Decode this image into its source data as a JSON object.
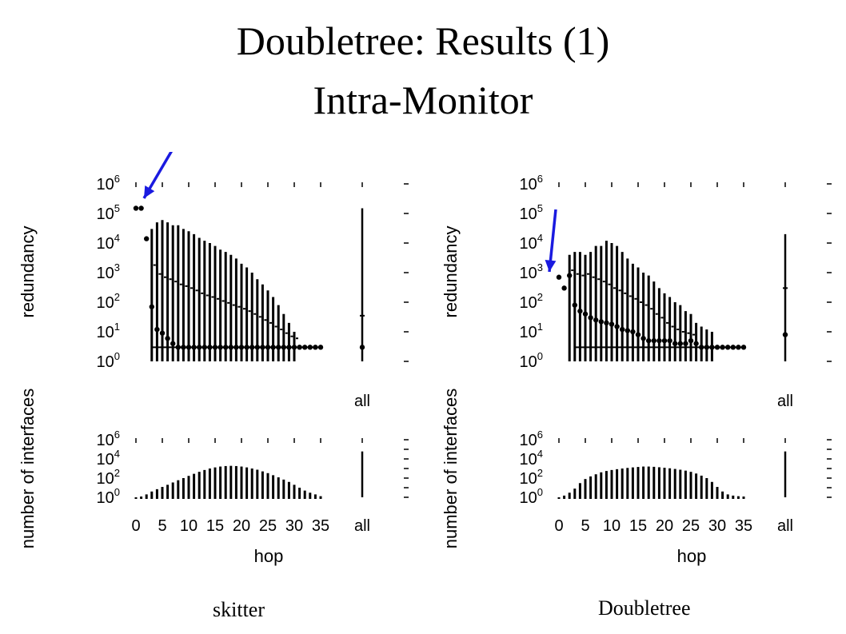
{
  "slide": {
    "title_line1": "Doubletree: Results (1)",
    "title_line2": "Intra-Monitor",
    "caption_left": "skitter",
    "caption_right": "Doubletree",
    "arrow_color": "#1a1ae0"
  },
  "chart_data": [
    {
      "type": "box-and-bar",
      "caption": "skitter",
      "top_panel": {
        "ylabel": "redundancy",
        "yscale": "log",
        "ylim": [
          1,
          1000000
        ],
        "yticks": [
          "10^0",
          "10^1",
          "10^2",
          "10^3",
          "10^4",
          "10^5",
          "10^6"
        ],
        "all_label": "all",
        "median": [
          [
            0,
            150000
          ],
          [
            1,
            150000
          ],
          [
            2,
            14000
          ],
          [
            3,
            70
          ],
          [
            4,
            12
          ],
          [
            5,
            9
          ],
          [
            6,
            6
          ],
          [
            7,
            4
          ],
          [
            8,
            3
          ],
          [
            9,
            3
          ],
          [
            10,
            3
          ],
          [
            11,
            3
          ],
          [
            12,
            3
          ],
          [
            13,
            3
          ],
          [
            14,
            3
          ],
          [
            15,
            3
          ],
          [
            16,
            3
          ],
          [
            17,
            3
          ],
          [
            18,
            3
          ],
          [
            19,
            3
          ],
          [
            20,
            3
          ],
          [
            21,
            3
          ],
          [
            22,
            3
          ],
          [
            23,
            3
          ],
          [
            24,
            3
          ],
          [
            25,
            3
          ],
          [
            26,
            3
          ],
          [
            27,
            3
          ],
          [
            28,
            3
          ],
          [
            29,
            3
          ],
          [
            30,
            3
          ],
          [
            31,
            3
          ],
          [
            32,
            3
          ],
          [
            33,
            3
          ],
          [
            34,
            3
          ],
          [
            35,
            3
          ]
        ],
        "mean": [
          [
            3,
            1800
          ],
          [
            4,
            900
          ],
          [
            5,
            700
          ],
          [
            6,
            600
          ],
          [
            7,
            500
          ],
          [
            8,
            400
          ],
          [
            9,
            350
          ],
          [
            10,
            300
          ],
          [
            11,
            250
          ],
          [
            12,
            200
          ],
          [
            13,
            170
          ],
          [
            14,
            150
          ],
          [
            15,
            130
          ],
          [
            16,
            110
          ],
          [
            17,
            95
          ],
          [
            18,
            80
          ],
          [
            19,
            70
          ],
          [
            20,
            60
          ],
          [
            21,
            50
          ],
          [
            22,
            40
          ],
          [
            23,
            32
          ],
          [
            24,
            25
          ],
          [
            25,
            20
          ],
          [
            26,
            15
          ],
          [
            27,
            12
          ],
          [
            28,
            9
          ],
          [
            29,
            7
          ],
          [
            30,
            6
          ]
        ],
        "ranges": [
          [
            3,
            1,
            30000
          ],
          [
            4,
            1,
            50000
          ],
          [
            5,
            1,
            60000
          ],
          [
            6,
            1,
            50000
          ],
          [
            7,
            1,
            40000
          ],
          [
            8,
            1,
            40000
          ],
          [
            9,
            1,
            30000
          ],
          [
            10,
            1,
            25000
          ],
          [
            11,
            1,
            20000
          ],
          [
            12,
            1,
            15000
          ],
          [
            13,
            1,
            12000
          ],
          [
            14,
            1,
            10000
          ],
          [
            15,
            1,
            8000
          ],
          [
            16,
            1,
            6000
          ],
          [
            17,
            1,
            5000
          ],
          [
            18,
            1,
            4000
          ],
          [
            19,
            1,
            3000
          ],
          [
            20,
            1,
            2000
          ],
          [
            21,
            1,
            1500
          ],
          [
            22,
            1,
            1000
          ],
          [
            23,
            1,
            600
          ],
          [
            24,
            1,
            400
          ],
          [
            25,
            1,
            250
          ],
          [
            26,
            1,
            150
          ],
          [
            27,
            1,
            80
          ],
          [
            28,
            1,
            40
          ],
          [
            29,
            1,
            20
          ],
          [
            30,
            1,
            10
          ]
        ],
        "all": {
          "min": 1,
          "max": 150000,
          "median": 3,
          "mean": 35
        }
      },
      "bottom_panel": {
        "ylabel": "number of interfaces",
        "xlabel": "hop",
        "yscale": "log",
        "yticks": [
          "10^0",
          "10^2",
          "10^4",
          "10^6"
        ],
        "xticks": [
          "0",
          "5",
          "10",
          "15",
          "20",
          "25",
          "30",
          "35",
          "all"
        ],
        "bars": [
          [
            0,
            1
          ],
          [
            1,
            1.2
          ],
          [
            2,
            2
          ],
          [
            3,
            4
          ],
          [
            4,
            7
          ],
          [
            5,
            12
          ],
          [
            6,
            20
          ],
          [
            7,
            35
          ],
          [
            8,
            60
          ],
          [
            9,
            100
          ],
          [
            10,
            170
          ],
          [
            11,
            280
          ],
          [
            12,
            450
          ],
          [
            13,
            700
          ],
          [
            14,
            1000
          ],
          [
            15,
            1300
          ],
          [
            16,
            1600
          ],
          [
            17,
            1800
          ],
          [
            18,
            1900
          ],
          [
            19,
            1800
          ],
          [
            20,
            1600
          ],
          [
            21,
            1300
          ],
          [
            22,
            1000
          ],
          [
            23,
            750
          ],
          [
            24,
            500
          ],
          [
            25,
            330
          ],
          [
            26,
            200
          ],
          [
            27,
            120
          ],
          [
            28,
            70
          ],
          [
            29,
            40
          ],
          [
            30,
            20
          ],
          [
            31,
            10
          ],
          [
            32,
            5
          ],
          [
            33,
            3
          ],
          [
            34,
            2
          ],
          [
            35,
            1.3
          ]
        ],
        "all": 60000
      }
    },
    {
      "type": "box-and-bar",
      "caption": "Doubletree",
      "top_panel": {
        "ylabel": "redundancy",
        "yscale": "log",
        "ylim": [
          1,
          1000000
        ],
        "yticks": [
          "10^0",
          "10^1",
          "10^2",
          "10^3",
          "10^4",
          "10^5",
          "10^6"
        ],
        "all_label": "all",
        "median": [
          [
            0,
            700
          ],
          [
            1,
            300
          ],
          [
            2,
            800
          ],
          [
            3,
            80
          ],
          [
            4,
            50
          ],
          [
            5,
            40
          ],
          [
            6,
            30
          ],
          [
            7,
            25
          ],
          [
            8,
            22
          ],
          [
            9,
            20
          ],
          [
            10,
            18
          ],
          [
            11,
            15
          ],
          [
            12,
            12
          ],
          [
            13,
            11
          ],
          [
            14,
            10
          ],
          [
            15,
            8
          ],
          [
            16,
            6
          ],
          [
            17,
            5
          ],
          [
            18,
            5
          ],
          [
            19,
            5
          ],
          [
            20,
            5
          ],
          [
            21,
            5
          ],
          [
            22,
            4
          ],
          [
            23,
            4
          ],
          [
            24,
            4
          ],
          [
            25,
            5
          ],
          [
            26,
            4
          ],
          [
            27,
            3
          ],
          [
            28,
            3
          ],
          [
            29,
            3
          ],
          [
            30,
            3
          ],
          [
            31,
            3
          ],
          [
            32,
            3
          ],
          [
            33,
            3
          ],
          [
            34,
            3
          ],
          [
            35,
            3
          ]
        ],
        "mean": [
          [
            2,
            1200
          ],
          [
            3,
            900
          ],
          [
            4,
            800
          ],
          [
            5,
            900
          ],
          [
            6,
            700
          ],
          [
            7,
            600
          ],
          [
            8,
            500
          ],
          [
            9,
            400
          ],
          [
            10,
            300
          ],
          [
            11,
            250
          ],
          [
            12,
            200
          ],
          [
            13,
            160
          ],
          [
            14,
            130
          ],
          [
            15,
            100
          ],
          [
            16,
            80
          ],
          [
            17,
            60
          ],
          [
            18,
            40
          ],
          [
            19,
            30
          ],
          [
            20,
            20
          ],
          [
            21,
            15
          ],
          [
            22,
            12
          ],
          [
            23,
            10
          ],
          [
            24,
            9
          ],
          [
            25,
            8
          ]
        ],
        "ranges": [
          [
            2,
            1,
            4000
          ],
          [
            3,
            1,
            5000
          ],
          [
            4,
            1,
            5000
          ],
          [
            5,
            1,
            4000
          ],
          [
            6,
            1,
            5000
          ],
          [
            7,
            1,
            8000
          ],
          [
            8,
            1,
            8000
          ],
          [
            9,
            1,
            12000
          ],
          [
            10,
            1,
            10000
          ],
          [
            11,
            1,
            8000
          ],
          [
            12,
            1,
            5000
          ],
          [
            13,
            1,
            3000
          ],
          [
            14,
            1,
            2000
          ],
          [
            15,
            1,
            1500
          ],
          [
            16,
            1,
            1000
          ],
          [
            17,
            1,
            800
          ],
          [
            18,
            1,
            500
          ],
          [
            19,
            1,
            300
          ],
          [
            20,
            1,
            200
          ],
          [
            21,
            1,
            150
          ],
          [
            22,
            1,
            100
          ],
          [
            23,
            1,
            80
          ],
          [
            24,
            1,
            50
          ],
          [
            25,
            1,
            40
          ],
          [
            26,
            1,
            20
          ],
          [
            27,
            1,
            15
          ],
          [
            28,
            1,
            12
          ],
          [
            29,
            1,
            10
          ]
        ],
        "all": {
          "min": 1,
          "max": 20000,
          "median": 8,
          "mean": 300
        }
      },
      "bottom_panel": {
        "ylabel": "number of interfaces",
        "xlabel": "hop",
        "yscale": "log",
        "yticks": [
          "10^0",
          "10^2",
          "10^4",
          "10^6"
        ],
        "xticks": [
          "0",
          "5",
          "10",
          "15",
          "20",
          "25",
          "30",
          "35",
          "all"
        ],
        "bars": [
          [
            0,
            1
          ],
          [
            1,
            1.5
          ],
          [
            2,
            3
          ],
          [
            3,
            8
          ],
          [
            4,
            30
          ],
          [
            5,
            80
          ],
          [
            6,
            150
          ],
          [
            7,
            250
          ],
          [
            8,
            400
          ],
          [
            9,
            550
          ],
          [
            10,
            700
          ],
          [
            11,
            850
          ],
          [
            12,
            1000
          ],
          [
            13,
            1150
          ],
          [
            14,
            1300
          ],
          [
            15,
            1450
          ],
          [
            16,
            1600
          ],
          [
            17,
            1600
          ],
          [
            18,
            1500
          ],
          [
            19,
            1350
          ],
          [
            20,
            1200
          ],
          [
            21,
            1050
          ],
          [
            22,
            900
          ],
          [
            23,
            750
          ],
          [
            24,
            600
          ],
          [
            25,
            450
          ],
          [
            26,
            300
          ],
          [
            27,
            180
          ],
          [
            28,
            100
          ],
          [
            29,
            40
          ],
          [
            30,
            12
          ],
          [
            31,
            4
          ],
          [
            32,
            2
          ],
          [
            33,
            1.5
          ],
          [
            34,
            1.3
          ],
          [
            35,
            1.2
          ]
        ],
        "all": 60000
      }
    }
  ]
}
